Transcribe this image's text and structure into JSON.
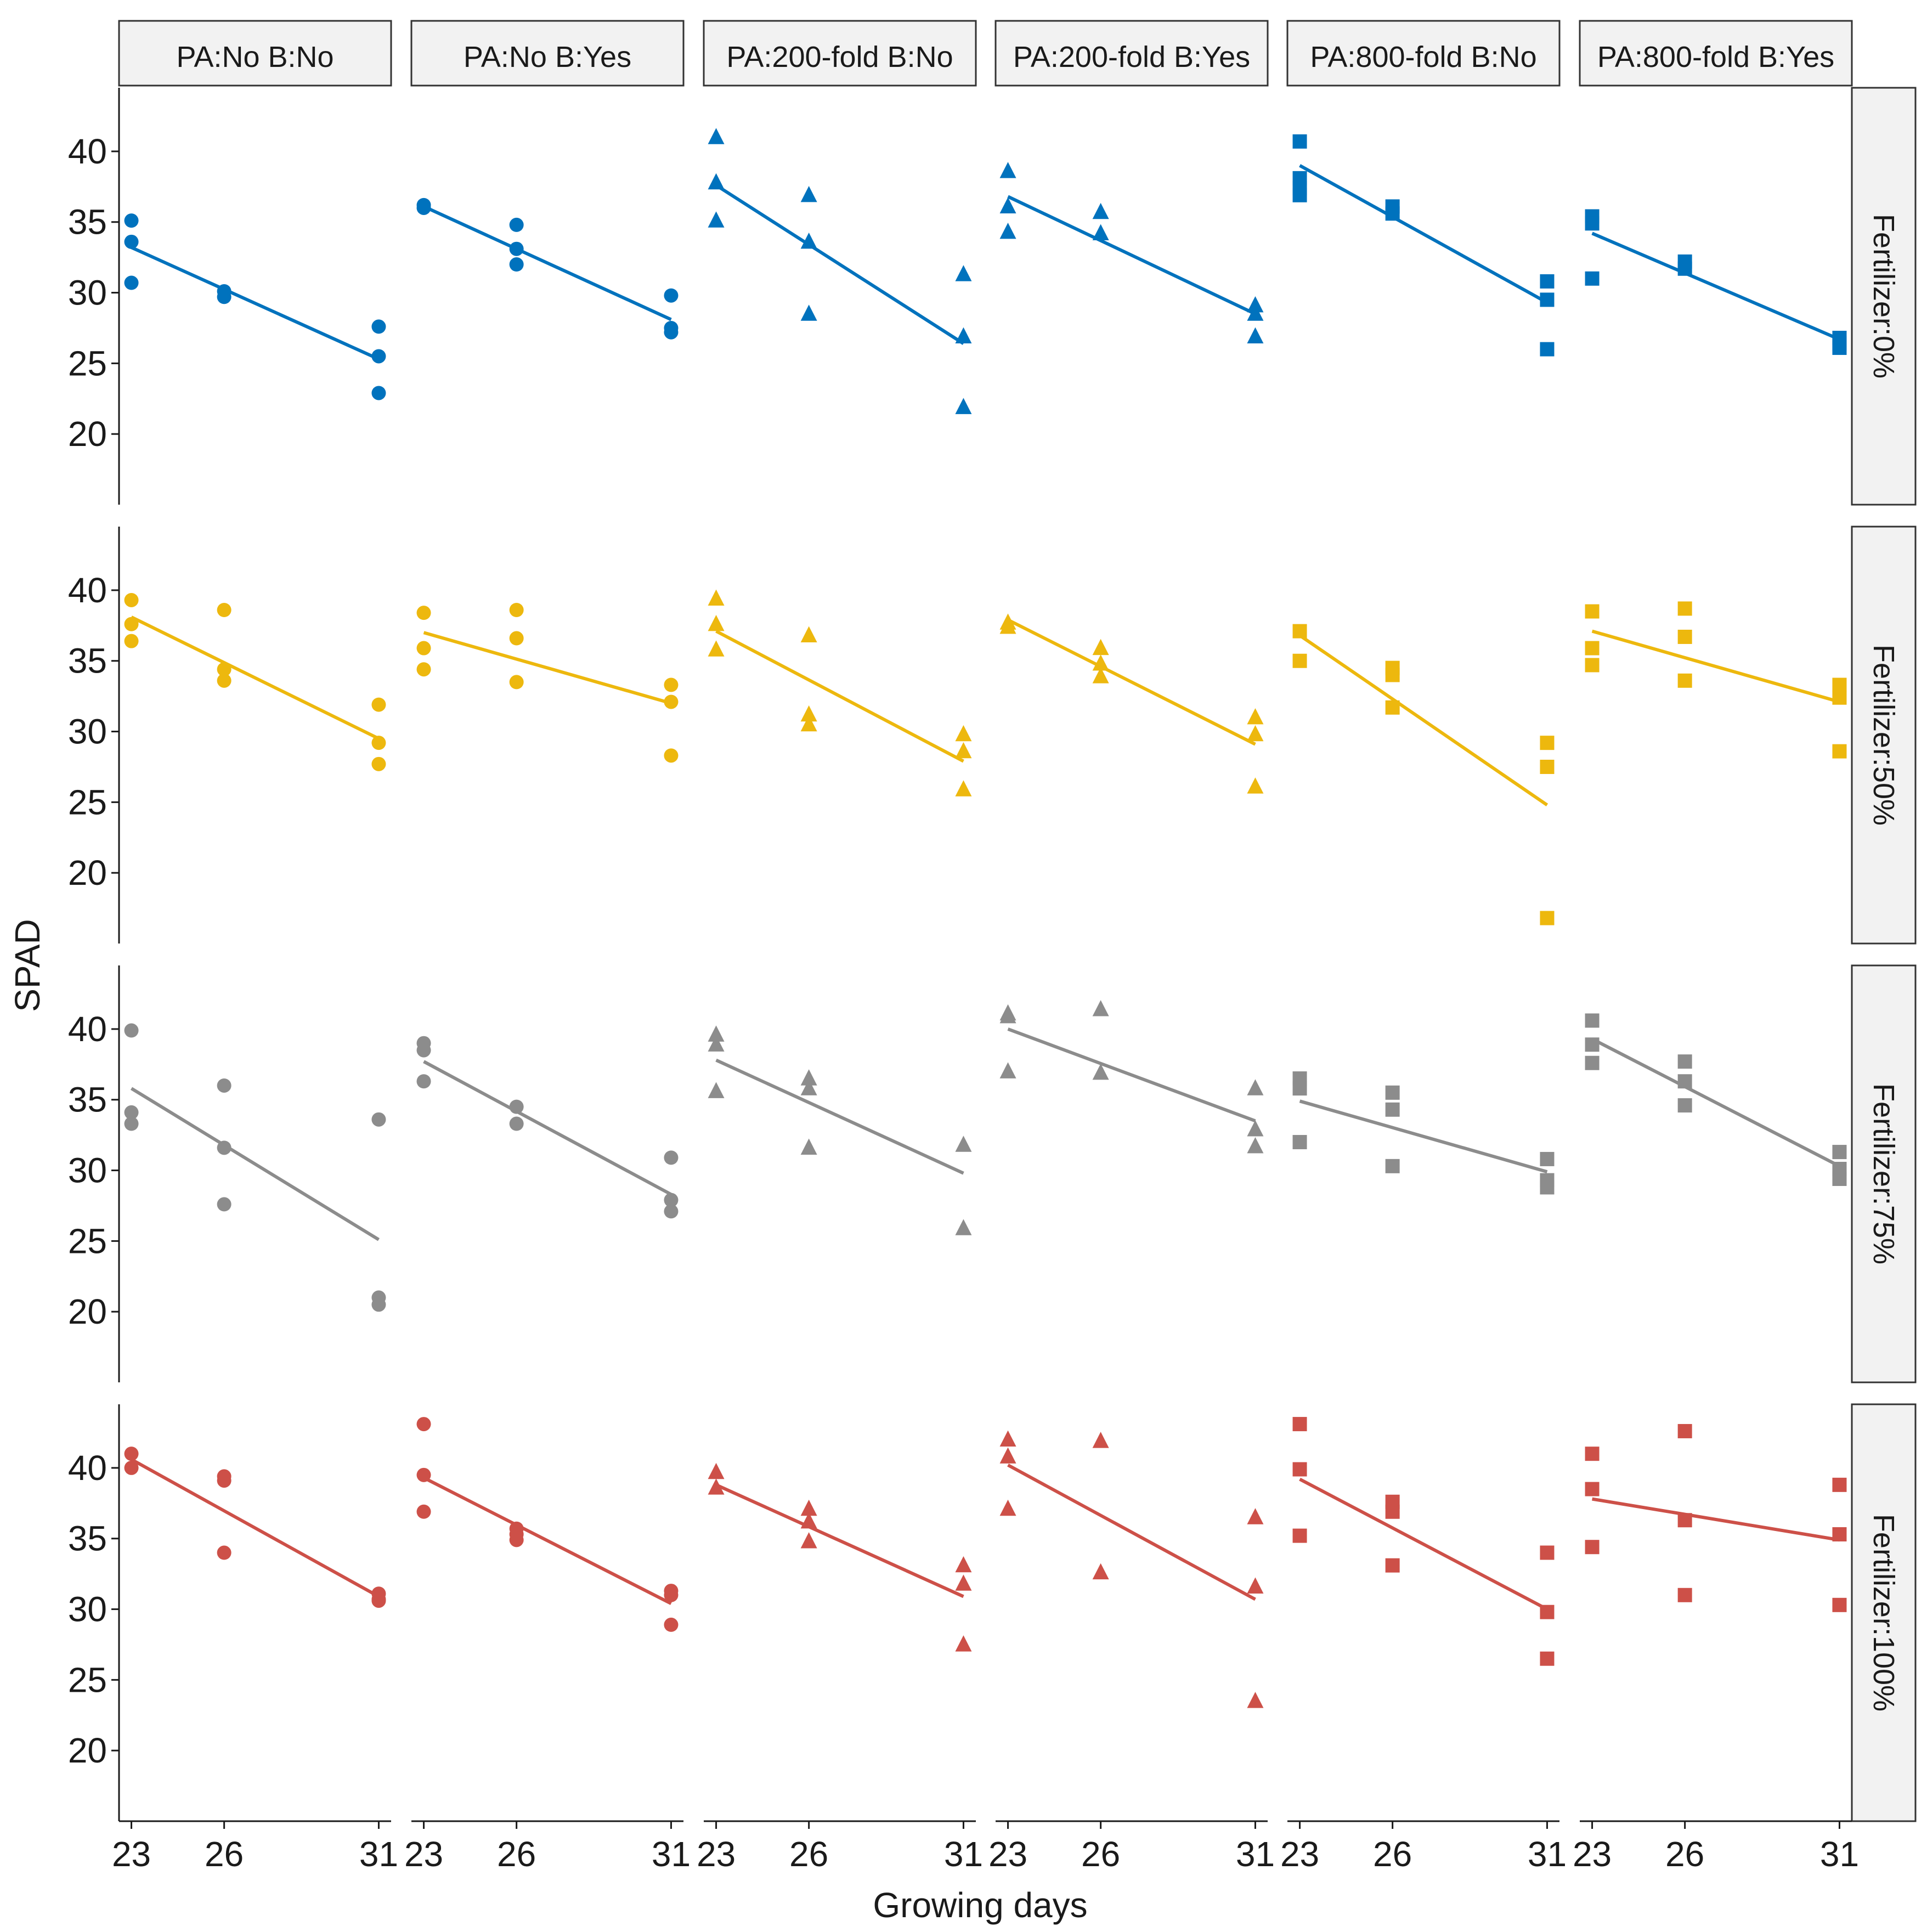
{
  "chart_data": {
    "type": "scatter",
    "xlabel": "Growing days",
    "ylabel": "SPAD",
    "x_ticks": [
      23,
      26,
      31
    ],
    "y_ticks": [
      20,
      25,
      30,
      35,
      40
    ],
    "xlim": [
      22.6,
      31.4
    ],
    "ylim": [
      15,
      44.5
    ],
    "columns": [
      {
        "label": "PA:No B:No",
        "shape": "circle"
      },
      {
        "label": "PA:No B:Yes",
        "shape": "circle"
      },
      {
        "label": "PA:200-fold B:No",
        "shape": "triangle"
      },
      {
        "label": "PA:200-fold B:Yes",
        "shape": "triangle"
      },
      {
        "label": "PA:800-fold B:No",
        "shape": "square"
      },
      {
        "label": "PA:800-fold B:Yes",
        "shape": "square"
      }
    ],
    "rows": [
      {
        "label": "Fertilizer:0%",
        "color": "#0072BD"
      },
      {
        "label": "Fertilizer:50%",
        "color": "#EDB80E"
      },
      {
        "label": "Fertilizer:75%",
        "color": "#8C8C8C"
      },
      {
        "label": "Fertilizer:100%",
        "color": "#CD5048"
      }
    ],
    "panels": [
      [
        {
          "points": [
            [
              23,
              35.1
            ],
            [
              23,
              33.6
            ],
            [
              23,
              30.7
            ],
            [
              26,
              30.1
            ],
            [
              26,
              29.7
            ],
            [
              31,
              27.6
            ],
            [
              31,
              25.5
            ],
            [
              31,
              22.9
            ]
          ],
          "fit": [
            [
              23,
              33.2
            ],
            [
              31,
              25.3
            ]
          ]
        },
        {
          "points": [
            [
              23,
              36.2
            ],
            [
              23,
              36.0
            ],
            [
              26,
              34.8
            ],
            [
              26,
              33.1
            ],
            [
              26,
              32.0
            ],
            [
              31,
              29.8
            ],
            [
              31,
              27.5
            ],
            [
              31,
              27.2
            ]
          ],
          "fit": [
            [
              23,
              36.1
            ],
            [
              31,
              28.1
            ]
          ]
        },
        {
          "points": [
            [
              23,
              41.0
            ],
            [
              23,
              37.8
            ],
            [
              23,
              35.1
            ],
            [
              26,
              36.9
            ],
            [
              26,
              33.6
            ],
            [
              26,
              28.5
            ],
            [
              31,
              31.3
            ],
            [
              31,
              26.9
            ],
            [
              31,
              21.9
            ]
          ],
          "fit": [
            [
              23,
              37.6
            ],
            [
              31,
              26.4
            ]
          ]
        },
        {
          "points": [
            [
              23,
              38.6
            ],
            [
              23,
              36.1
            ],
            [
              23,
              34.3
            ],
            [
              26,
              35.7
            ],
            [
              26,
              34.2
            ],
            [
              31,
              29.1
            ],
            [
              31,
              28.5
            ],
            [
              31,
              26.9
            ]
          ],
          "fit": [
            [
              23,
              36.8
            ],
            [
              31,
              28.5
            ]
          ]
        },
        {
          "points": [
            [
              23,
              40.7
            ],
            [
              23,
              38.1
            ],
            [
              23,
              37.4
            ],
            [
              23,
              36.9
            ],
            [
              26,
              36.1
            ],
            [
              26,
              35.6
            ],
            [
              31,
              30.8
            ],
            [
              31,
              29.5
            ],
            [
              31,
              26.0
            ]
          ],
          "fit": [
            [
              23,
              39.0
            ],
            [
              31,
              29.3
            ]
          ]
        },
        {
          "points": [
            [
              23,
              35.4
            ],
            [
              23,
              34.9
            ],
            [
              23,
              31.0
            ],
            [
              26,
              32.2
            ],
            [
              26,
              31.7
            ],
            [
              31,
              26.8
            ],
            [
              31,
              26.4
            ],
            [
              31,
              26.1
            ]
          ],
          "fit": [
            [
              23,
              34.2
            ],
            [
              31,
              26.7
            ]
          ]
        }
      ],
      [
        {
          "points": [
            [
              23,
              39.3
            ],
            [
              23,
              37.6
            ],
            [
              23,
              36.4
            ],
            [
              26,
              38.6
            ],
            [
              26,
              34.4
            ],
            [
              26,
              33.6
            ],
            [
              31,
              31.9
            ],
            [
              31,
              29.2
            ],
            [
              31,
              27.7
            ]
          ],
          "fit": [
            [
              23,
              38.1
            ],
            [
              31,
              29.5
            ]
          ]
        },
        {
          "points": [
            [
              23,
              38.4
            ],
            [
              23,
              35.9
            ],
            [
              23,
              34.4
            ],
            [
              26,
              38.6
            ],
            [
              26,
              36.6
            ],
            [
              26,
              33.5
            ],
            [
              31,
              33.3
            ],
            [
              31,
              32.1
            ],
            [
              31,
              28.3
            ]
          ],
          "fit": [
            [
              23,
              37.0
            ],
            [
              31,
              32.0
            ]
          ]
        },
        {
          "points": [
            [
              23,
              39.4
            ],
            [
              23,
              37.6
            ],
            [
              23,
              35.8
            ],
            [
              26,
              36.8
            ],
            [
              26,
              31.2
            ],
            [
              26,
              30.5
            ],
            [
              31,
              29.8
            ],
            [
              31,
              28.6
            ],
            [
              31,
              25.9
            ]
          ],
          "fit": [
            [
              23,
              37.1
            ],
            [
              31,
              27.9
            ]
          ]
        },
        {
          "points": [
            [
              23,
              37.7
            ],
            [
              23,
              37.4
            ],
            [
              26,
              35.9
            ],
            [
              26,
              34.8
            ],
            [
              26,
              33.9
            ],
            [
              31,
              31.0
            ],
            [
              31,
              29.8
            ],
            [
              31,
              26.1
            ]
          ],
          "fit": [
            [
              23,
              37.9
            ],
            [
              31,
              29.1
            ]
          ]
        },
        {
          "points": [
            [
              23,
              37.1
            ],
            [
              23,
              35.0
            ],
            [
              26,
              34.5
            ],
            [
              26,
              34.0
            ],
            [
              26,
              31.7
            ],
            [
              31,
              29.2
            ],
            [
              31,
              27.5
            ],
            [
              31,
              16.8
            ]
          ],
          "fit": [
            [
              23,
              36.8
            ],
            [
              31,
              24.8
            ]
          ]
        },
        {
          "points": [
            [
              23,
              38.5
            ],
            [
              23,
              35.9
            ],
            [
              23,
              34.7
            ],
            [
              26,
              38.7
            ],
            [
              26,
              36.7
            ],
            [
              26,
              33.6
            ],
            [
              31,
              33.3
            ],
            [
              31,
              32.4
            ],
            [
              31,
              28.6
            ]
          ],
          "fit": [
            [
              23,
              37.1
            ],
            [
              31,
              32.1
            ]
          ]
        }
      ],
      [
        {
          "points": [
            [
              23,
              39.9
            ],
            [
              23,
              34.1
            ],
            [
              23,
              33.3
            ],
            [
              26,
              36.0
            ],
            [
              26,
              31.6
            ],
            [
              26,
              27.6
            ],
            [
              31,
              33.6
            ],
            [
              31,
              21.0
            ],
            [
              31,
              20.5
            ]
          ],
          "fit": [
            [
              23,
              35.8
            ],
            [
              31,
              25.1
            ]
          ]
        },
        {
          "points": [
            [
              23,
              39.0
            ],
            [
              23,
              38.5
            ],
            [
              23,
              36.3
            ],
            [
              26,
              34.5
            ],
            [
              26,
              33.3
            ],
            [
              31,
              30.9
            ],
            [
              31,
              27.9
            ],
            [
              31,
              27.1
            ]
          ],
          "fit": [
            [
              23,
              37.7
            ],
            [
              31,
              28.3
            ]
          ]
        },
        {
          "points": [
            [
              23,
              39.6
            ],
            [
              23,
              38.9
            ],
            [
              23,
              35.6
            ],
            [
              26,
              36.5
            ],
            [
              26,
              35.8
            ],
            [
              26,
              31.6
            ],
            [
              31,
              31.8
            ],
            [
              31,
              25.9
            ]
          ],
          "fit": [
            [
              23,
              37.8
            ],
            [
              31,
              29.8
            ]
          ]
        },
        {
          "points": [
            [
              23,
              41.1
            ],
            [
              23,
              40.9
            ],
            [
              23,
              37.0
            ],
            [
              26,
              41.4
            ],
            [
              26,
              36.9
            ],
            [
              31,
              35.8
            ],
            [
              31,
              32.9
            ],
            [
              31,
              31.7
            ]
          ],
          "fit": [
            [
              23,
              40.0
            ],
            [
              31,
              33.5
            ]
          ]
        },
        {
          "points": [
            [
              23,
              36.5
            ],
            [
              23,
              35.8
            ],
            [
              23,
              32.0
            ],
            [
              26,
              35.5
            ],
            [
              26,
              34.3
            ],
            [
              26,
              30.3
            ],
            [
              31,
              30.8
            ],
            [
              31,
              29.3
            ],
            [
              31,
              28.8
            ]
          ],
          "fit": [
            [
              23,
              34.9
            ],
            [
              31,
              29.9
            ]
          ]
        },
        {
          "points": [
            [
              23,
              40.6
            ],
            [
              23,
              38.9
            ],
            [
              23,
              37.6
            ],
            [
              26,
              37.7
            ],
            [
              26,
              36.3
            ],
            [
              26,
              34.6
            ],
            [
              31,
              31.3
            ],
            [
              31,
              30.1
            ],
            [
              31,
              29.4
            ]
          ],
          "fit": [
            [
              23,
              39.3
            ],
            [
              31,
              30.3
            ]
          ]
        }
      ],
      [
        {
          "points": [
            [
              23,
              41.0
            ],
            [
              23,
              40.0
            ],
            [
              26,
              39.4
            ],
            [
              26,
              39.1
            ],
            [
              26,
              34.0
            ],
            [
              31,
              31.1
            ],
            [
              31,
              30.7
            ],
            [
              31,
              30.6
            ]
          ],
          "fit": [
            [
              23,
              40.6
            ],
            [
              31,
              30.9
            ]
          ]
        },
        {
          "points": [
            [
              23,
              43.1
            ],
            [
              23,
              39.5
            ],
            [
              23,
              36.9
            ],
            [
              26,
              35.7
            ],
            [
              26,
              35.3
            ],
            [
              26,
              34.9
            ],
            [
              31,
              31.3
            ],
            [
              31,
              31.0
            ],
            [
              31,
              28.9
            ]
          ],
          "fit": [
            [
              23,
              39.3
            ],
            [
              31,
              30.4
            ]
          ]
        },
        {
          "points": [
            [
              23,
              39.7
            ],
            [
              23,
              38.6
            ],
            [
              26,
              37.1
            ],
            [
              26,
              36.2
            ],
            [
              26,
              34.8
            ],
            [
              31,
              33.1
            ],
            [
              31,
              31.8
            ],
            [
              31,
              27.5
            ]
          ],
          "fit": [
            [
              23,
              38.8
            ],
            [
              31,
              30.9
            ]
          ]
        },
        {
          "points": [
            [
              23,
              42.0
            ],
            [
              23,
              40.8
            ],
            [
              23,
              37.1
            ],
            [
              26,
              41.9
            ],
            [
              26,
              32.6
            ],
            [
              31,
              36.5
            ],
            [
              31,
              31.6
            ],
            [
              31,
              23.5
            ]
          ],
          "fit": [
            [
              23,
              40.2
            ],
            [
              31,
              30.7
            ]
          ]
        },
        {
          "points": [
            [
              23,
              43.1
            ],
            [
              23,
              39.9
            ],
            [
              23,
              35.2
            ],
            [
              26,
              37.6
            ],
            [
              26,
              36.9
            ],
            [
              26,
              33.1
            ],
            [
              31,
              34.0
            ],
            [
              31,
              29.8
            ],
            [
              31,
              26.5
            ]
          ],
          "fit": [
            [
              23,
              39.2
            ],
            [
              31,
              30.0
            ]
          ]
        },
        {
          "points": [
            [
              23,
              41.0
            ],
            [
              23,
              38.5
            ],
            [
              23,
              34.4
            ],
            [
              26,
              42.6
            ],
            [
              26,
              36.3
            ],
            [
              26,
              31.0
            ],
            [
              31,
              38.8
            ],
            [
              31,
              35.3
            ],
            [
              31,
              30.3
            ]
          ],
          "fit": [
            [
              23,
              37.8
            ],
            [
              31,
              34.9
            ]
          ]
        }
      ]
    ]
  }
}
